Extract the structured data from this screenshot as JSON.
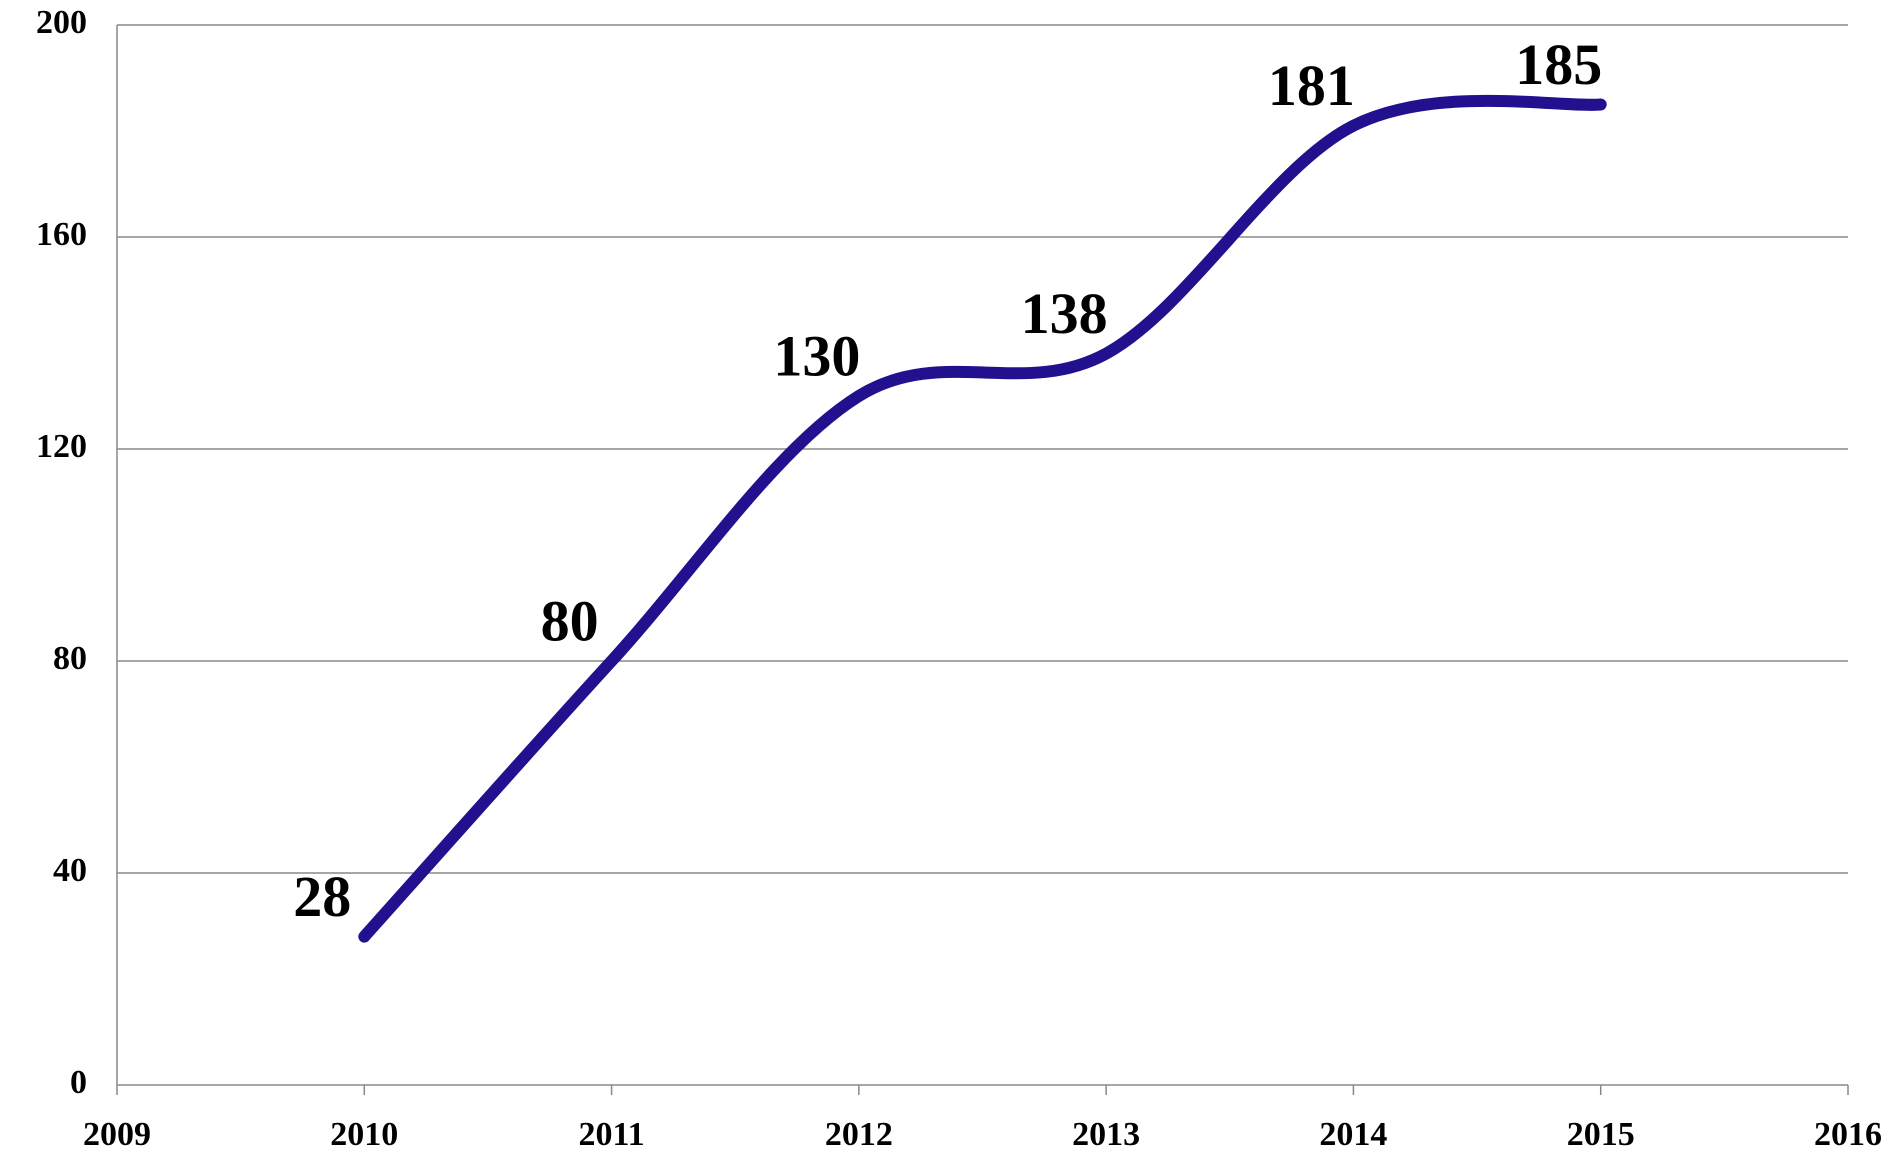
{
  "chart_data": {
    "type": "line",
    "x": [
      2010,
      2011,
      2012,
      2013,
      2014,
      2015
    ],
    "series": [
      {
        "color": "#22118f",
        "values": [
          28,
          80,
          130,
          138,
          181,
          185
        ]
      }
    ],
    "xlim": [
      2009,
      2016
    ],
    "xticks": [
      2009,
      2010,
      2011,
      2012,
      2013,
      2014,
      2015,
      2016
    ],
    "ylim": [
      0,
      200
    ],
    "yticks": [
      0,
      40,
      80,
      120,
      160,
      200
    ],
    "grid": true,
    "smooth": true
  }
}
